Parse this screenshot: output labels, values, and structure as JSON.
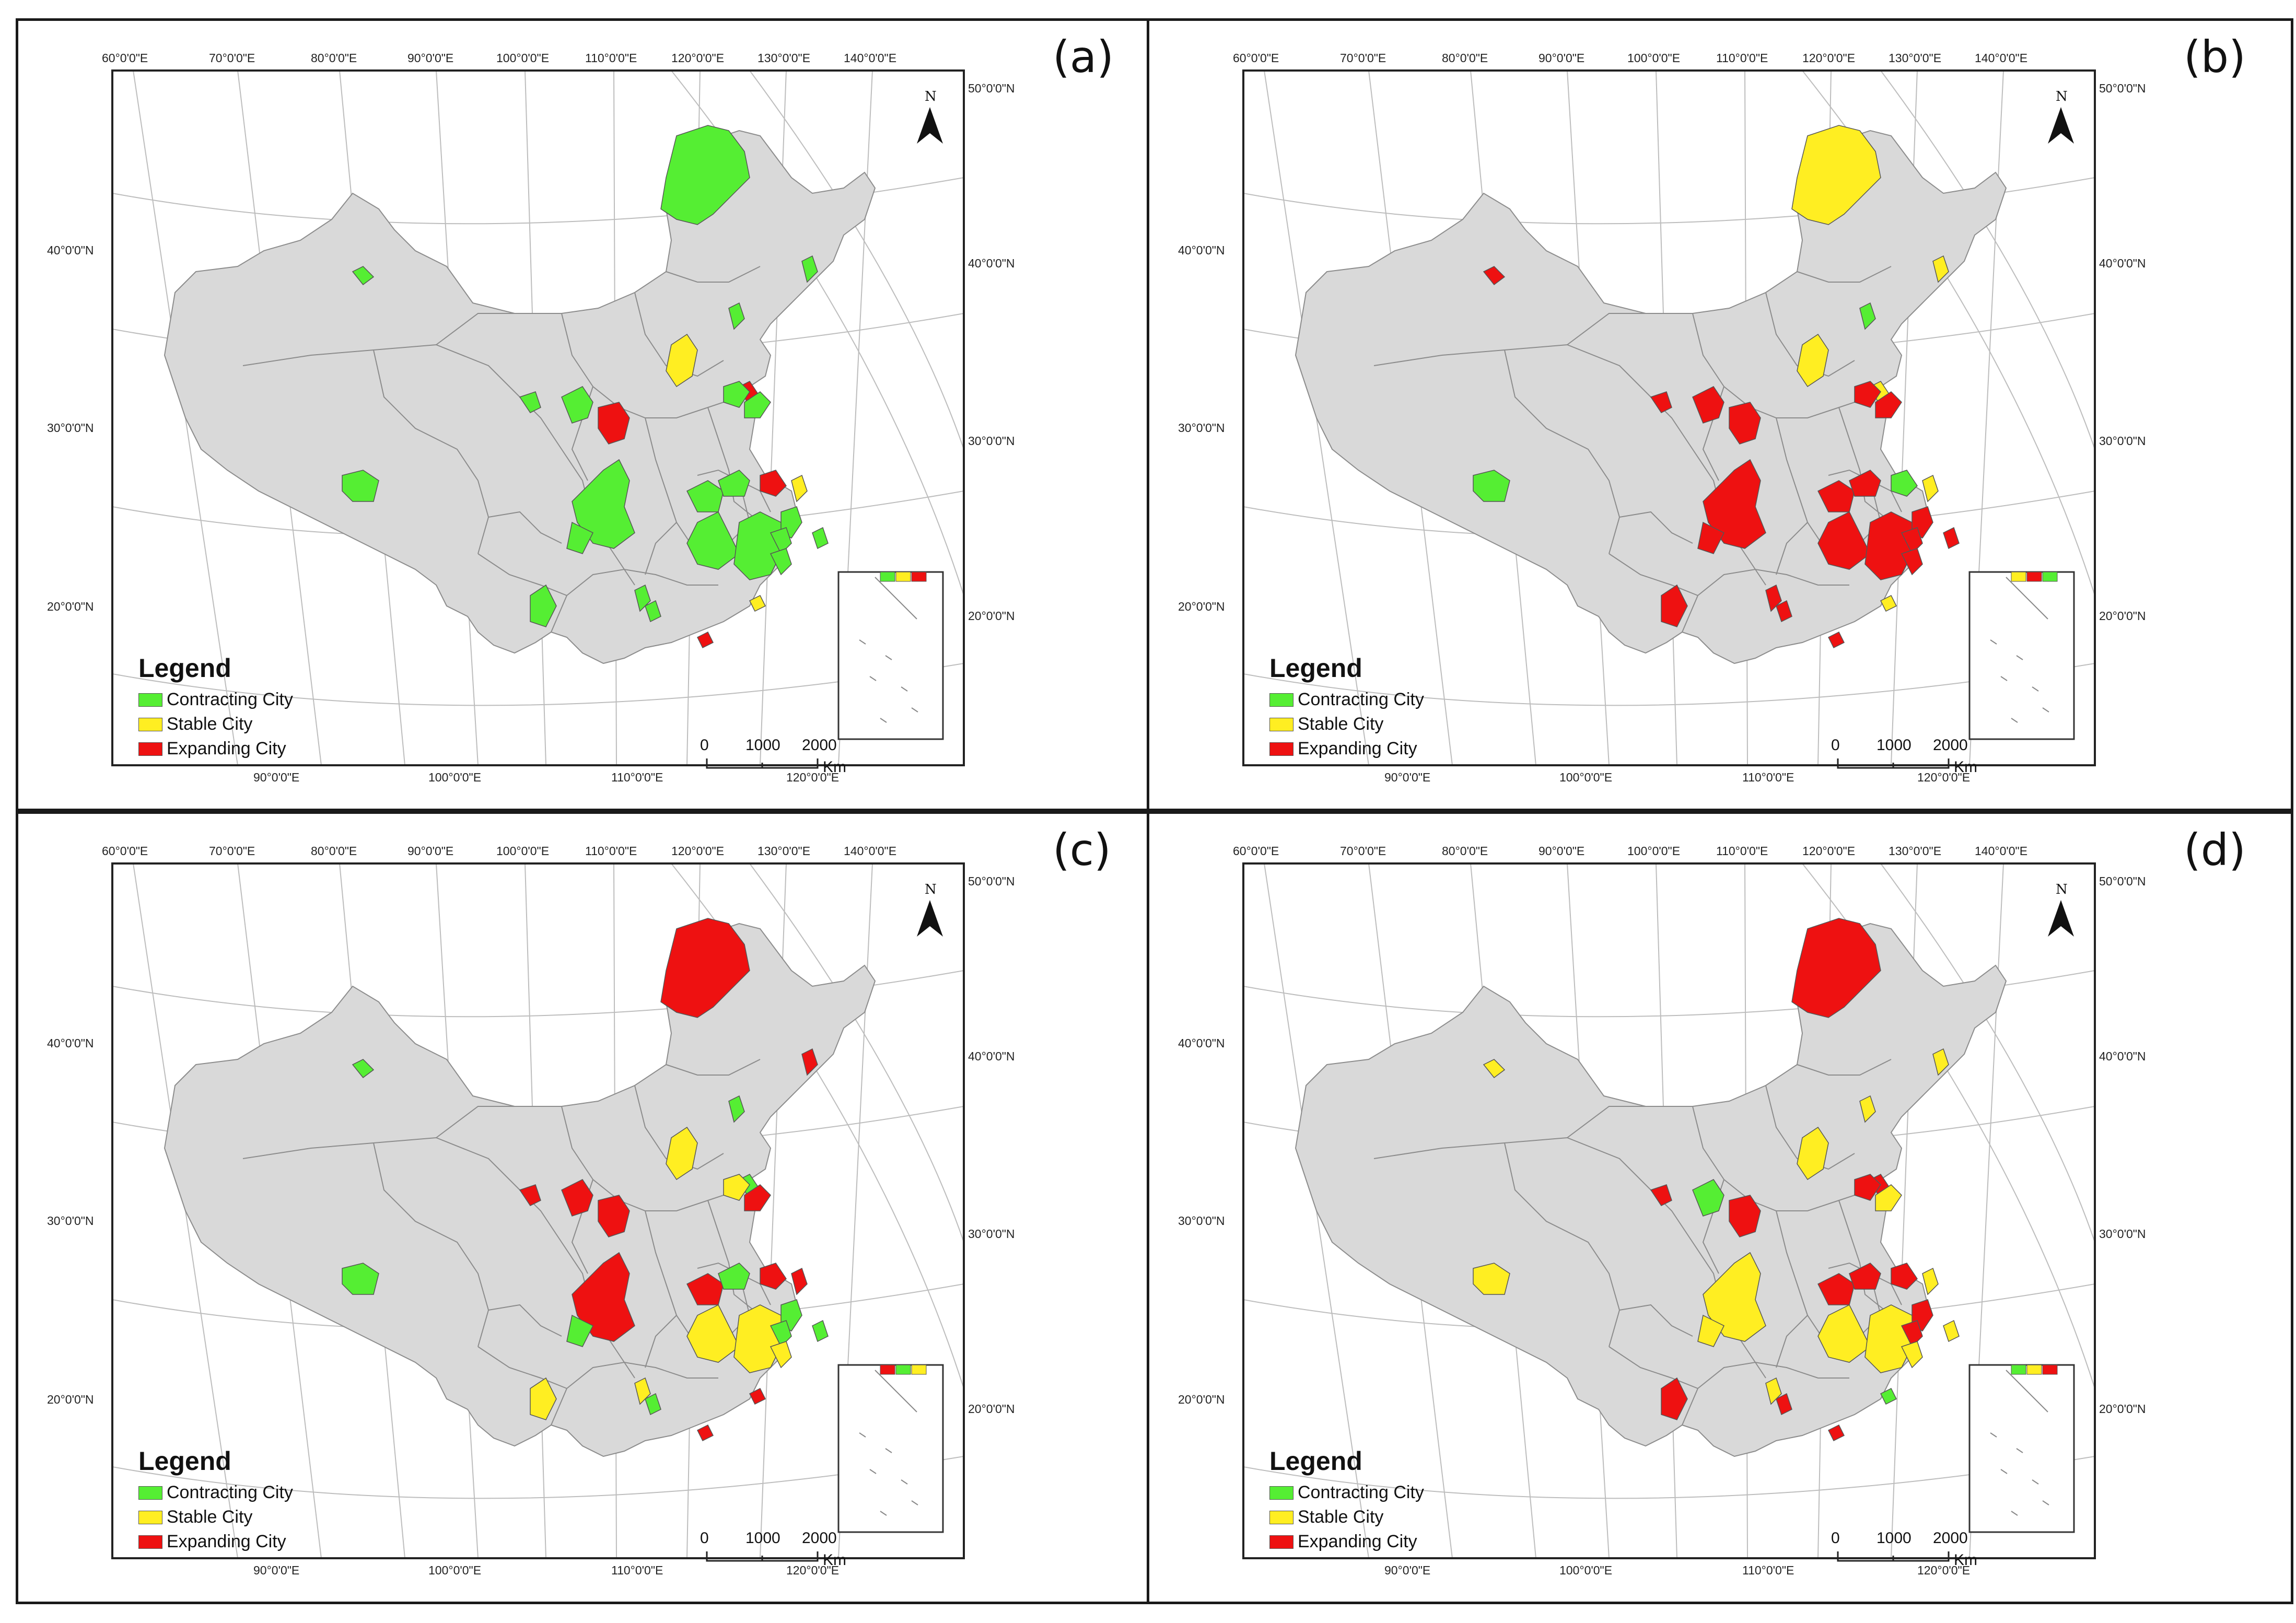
{
  "panels": [
    {
      "label": "(a)"
    },
    {
      "label": "(b)"
    },
    {
      "label": "(c)"
    },
    {
      "label": "(d)"
    }
  ],
  "axes": {
    "top_lon": [
      "60°0'0\"E",
      "70°0'0\"E",
      "80°0'0\"E",
      "90°0'0\"E",
      "100°0'0\"E",
      "110°0'0\"E",
      "120°0'0\"E",
      "130°0'0\"E",
      "140°0'0\"E"
    ],
    "bottom_lon": [
      "90°0'0\"E",
      "100°0'0\"E",
      "110°0'0\"E",
      "120°0'0\"E"
    ],
    "left_lat": [
      "40°0'0\"N",
      "30°0'0\"N",
      "20°0'0\"N"
    ],
    "right_lat": [
      "50°0'0\"N",
      "40°0'0\"N",
      "30°0'0\"N",
      "20°0'0\"N"
    ]
  },
  "legend": {
    "title": "Legend",
    "items": [
      {
        "label": "Contracting City",
        "color": "#55ee33"
      },
      {
        "label": "Stable City",
        "color": "#ffee22"
      },
      {
        "label": "Expanding City",
        "color": "#ee1111"
      }
    ]
  },
  "scale_bar": {
    "ticks": [
      "0",
      "1000",
      "2000"
    ],
    "unit": "Km"
  },
  "north_arrow": {
    "label": "N"
  },
  "colors": {
    "land": "#d9d9d9",
    "border": "#8c8c8c",
    "graticule": "#bdbdbd",
    "frame": "#222222"
  },
  "category_by_panel": [
    [
      "green",
      "green",
      "green",
      "green",
      "green",
      "red",
      "yellow",
      "green",
      "red",
      "green",
      "green",
      "green",
      "green",
      "green",
      "green",
      "green",
      "green",
      "green",
      "green",
      "red",
      "yellow",
      "green",
      "green",
      "red",
      "yellow",
      "green",
      "green",
      "green",
      "green"
    ],
    [
      "yellow",
      "red",
      "green",
      "red",
      "red",
      "red",
      "yellow",
      "green",
      "yellow",
      "yellow",
      "red",
      "red",
      "red",
      "red",
      "red",
      "red",
      "red",
      "red",
      "red",
      "green",
      "yellow",
      "red",
      "red",
      "red",
      "yellow",
      "red",
      "red",
      "red",
      "red"
    ],
    [
      "red",
      "green",
      "green",
      "red",
      "red",
      "red",
      "yellow",
      "green",
      "green",
      "red",
      "yellow",
      "red",
      "red",
      "green",
      "red",
      "yellow",
      "yellow",
      "green",
      "green",
      "red",
      "red",
      "yellow",
      "yellow",
      "red",
      "red",
      "green",
      "green",
      "green",
      "yellow"
    ],
    [
      "red",
      "yellow",
      "yellow",
      "red",
      "green",
      "red",
      "yellow",
      "yellow",
      "red",
      "yellow",
      "red",
      "yellow",
      "yellow",
      "yellow",
      "red",
      "yellow",
      "yellow",
      "red",
      "red",
      "red",
      "yellow",
      "red",
      "yellow",
      "red",
      "green",
      "red",
      "yellow",
      "red",
      "yellow"
    ]
  ]
}
